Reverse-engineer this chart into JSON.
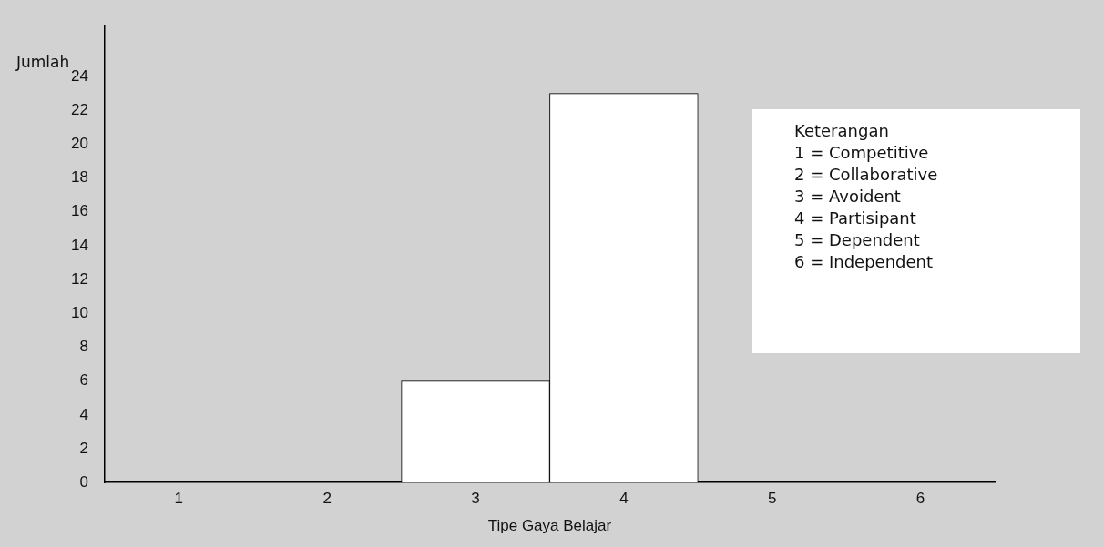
{
  "chart_data": {
    "type": "bar",
    "xlabel": "Tipe Gaya Belajar",
    "ylabel": "Jumlah",
    "categories": [
      "1",
      "2",
      "3",
      "4",
      "5",
      "6"
    ],
    "values": [
      0,
      0,
      6,
      23,
      0,
      0
    ],
    "color": "#ffffff",
    "ylim": [
      0,
      27
    ],
    "yticks": [
      0,
      2,
      4,
      6,
      8,
      10,
      12,
      14,
      16,
      18,
      20,
      22,
      24
    ],
    "grid": false,
    "legend": false,
    "annotations": [
      "Keterangan",
      "1 = Competitive",
      "2 = Collaborative",
      "3 = Avoident",
      "4 = Partisipant",
      "5 = Dependent",
      "6 = Independent"
    ]
  }
}
